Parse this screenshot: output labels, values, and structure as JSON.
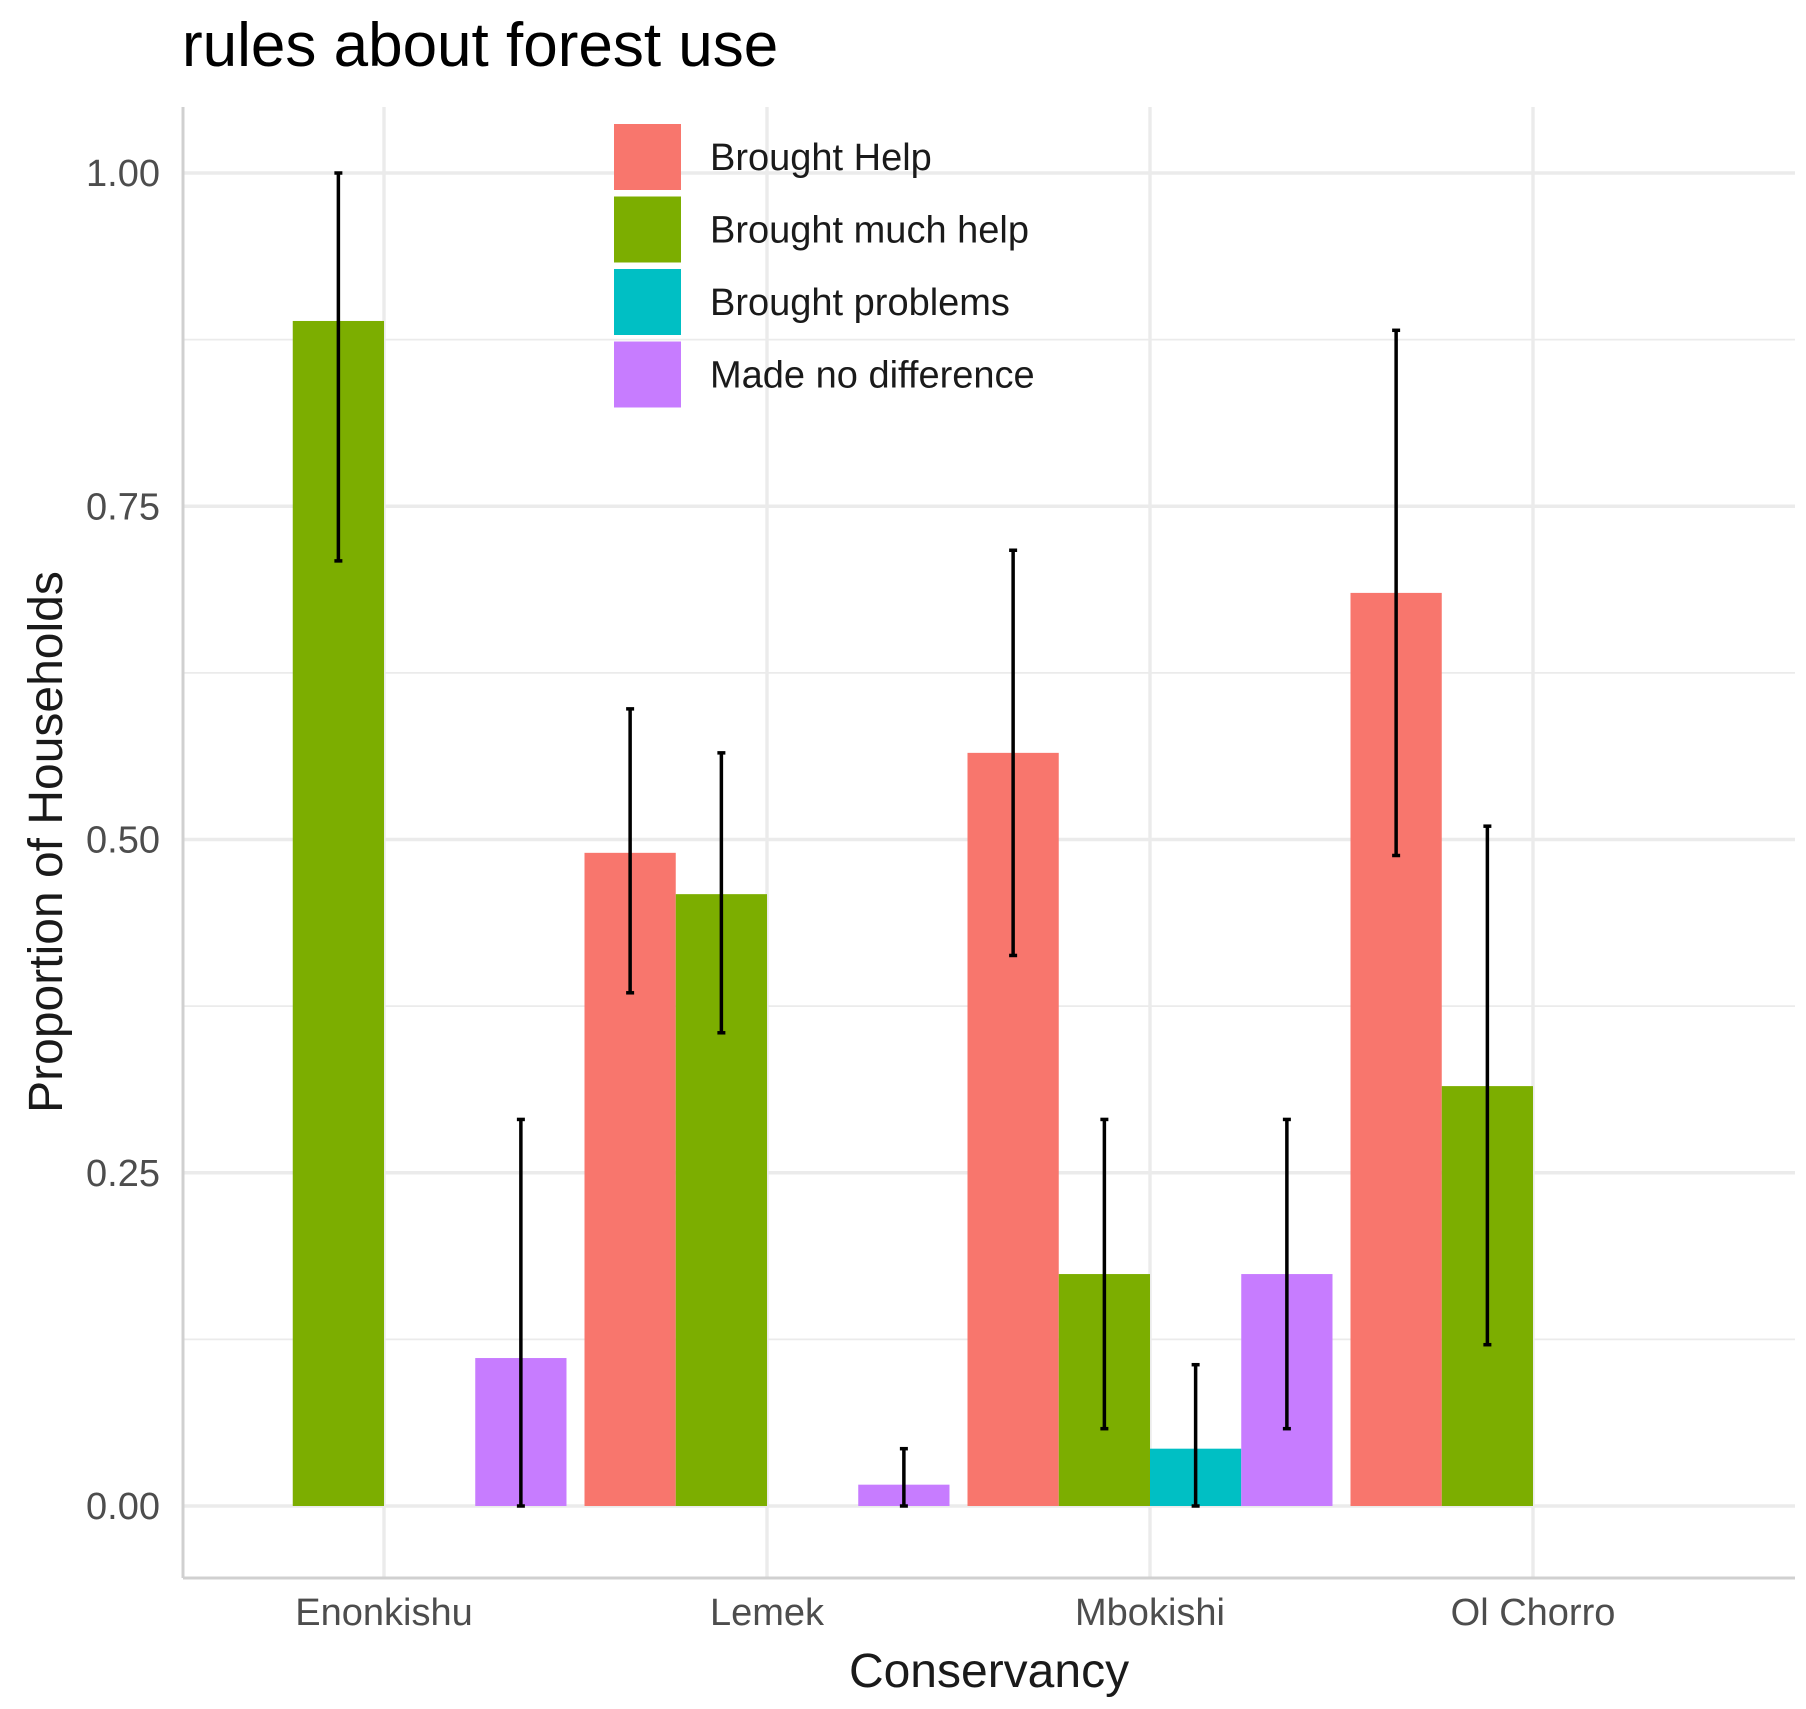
{
  "chart_data": {
    "type": "bar",
    "title": "rules about forest use",
    "xlabel": "Conservancy",
    "ylabel": "Proportion of Households",
    "categories": [
      "Enonkishu",
      "Lemek",
      "Mbokishi",
      "Ol Chorro"
    ],
    "ylim": [
      -0.05,
      1.05
    ],
    "yticks": [
      0.0,
      0.25,
      0.5,
      0.75,
      1.0
    ],
    "ytick_labels": [
      "0.00",
      "0.25",
      "0.50",
      "0.75",
      "1.00"
    ],
    "grid": true,
    "legend_position": "top-center (inside plot)",
    "series": [
      {
        "name": "Brought Help",
        "color": "#F8766D",
        "values": [
          null,
          0.49,
          0.565,
          0.685
        ],
        "error_low": [
          null,
          0.385,
          0.413,
          0.488
        ],
        "error_high": [
          null,
          0.598,
          0.717,
          0.882
        ]
      },
      {
        "name": "Brought much help",
        "color": "#7CAE00",
        "values": [
          0.889,
          0.459,
          0.174,
          0.315
        ],
        "error_low": [
          0.709,
          0.355,
          0.058,
          0.121
        ],
        "error_high": [
          1.0,
          0.565,
          0.29,
          0.51
        ]
      },
      {
        "name": "Brought problems",
        "color": "#00BFC4",
        "values": [
          null,
          null,
          0.043,
          null
        ],
        "error_low": [
          null,
          null,
          0.0,
          null
        ],
        "error_high": [
          null,
          null,
          0.106,
          null
        ]
      },
      {
        "name": "Made no difference",
        "color": "#C77CFF",
        "values": [
          0.111,
          0.016,
          0.174,
          null
        ],
        "error_low": [
          0.0,
          0.0,
          0.058,
          null
        ],
        "error_high": [
          0.29,
          0.043,
          0.29,
          null
        ]
      }
    ]
  }
}
